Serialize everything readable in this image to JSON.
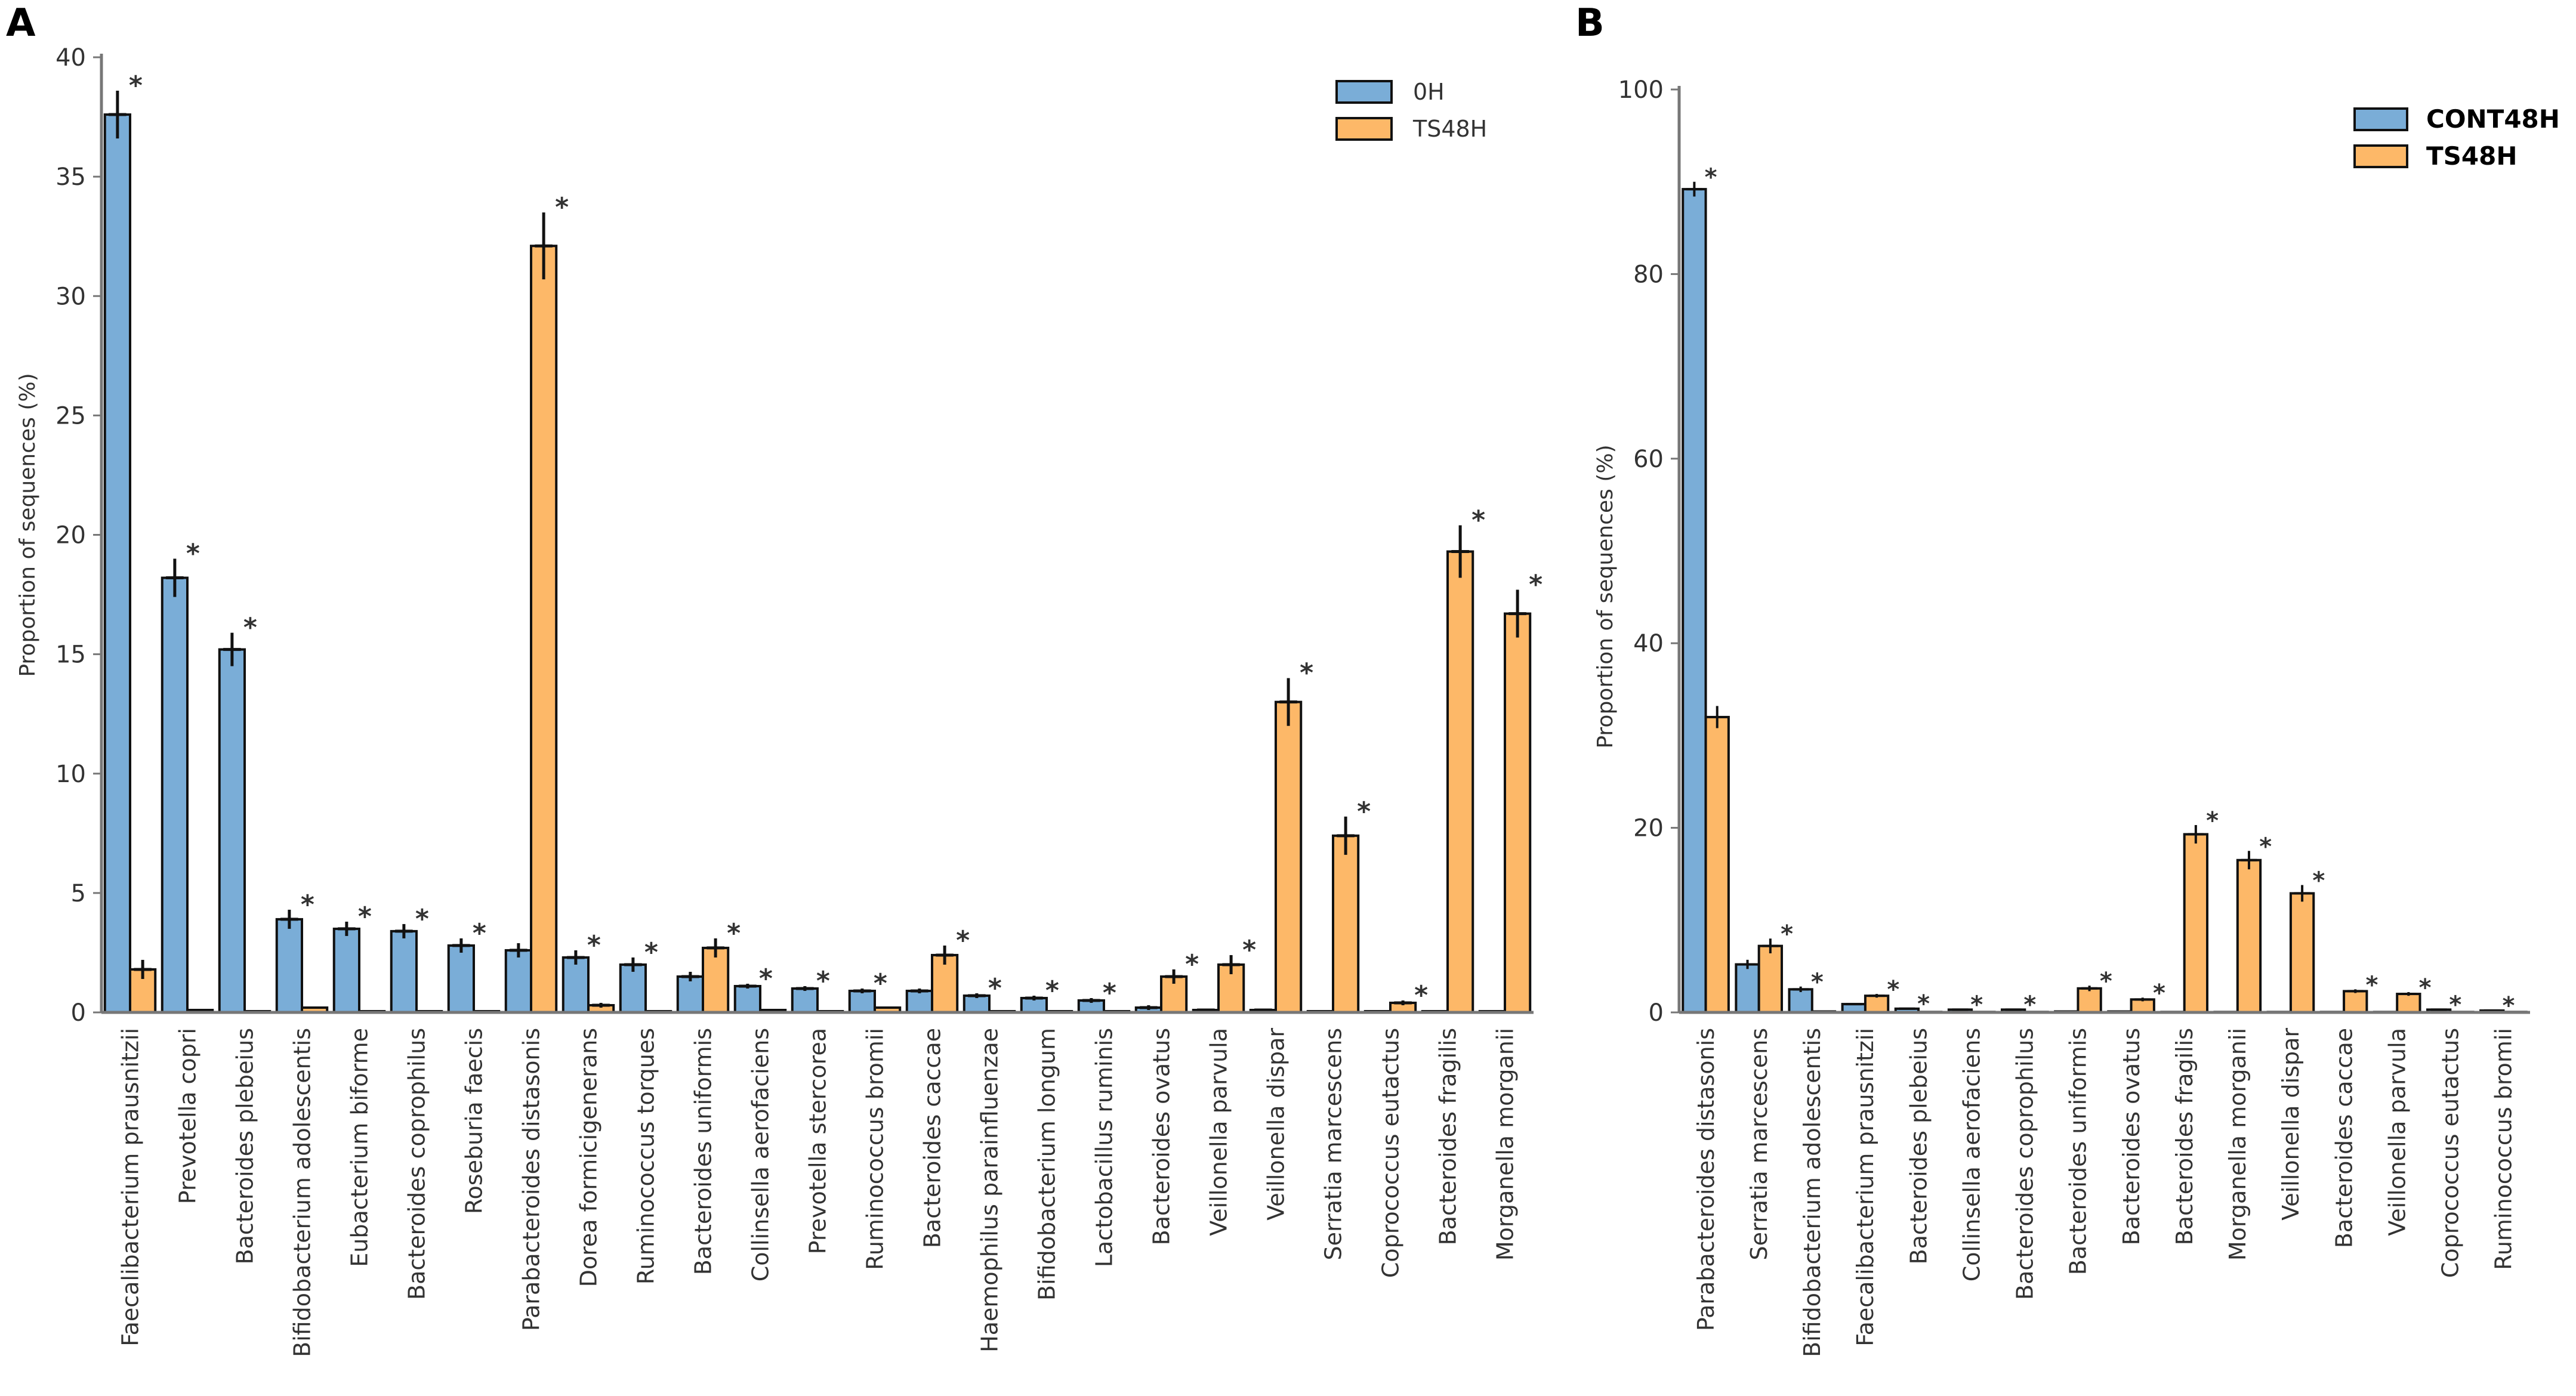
{
  "colors": {
    "blue": "#7aadd7",
    "orange": "#fdb868",
    "edge": "#111111",
    "axis": "#777777"
  },
  "chart_data": [
    {
      "panel_label": "A",
      "type": "bar",
      "ylabel": "Proportion of sequences (%)",
      "xlabel": "",
      "ylim": [
        0,
        40
      ],
      "yticks": [
        0,
        5,
        10,
        15,
        20,
        25,
        30,
        35,
        40
      ],
      "legend_position": "top-right",
      "categories": [
        "Faecalibacterium  prausnitzii",
        "Prevotella copri",
        "Bacteroides plebeius",
        "Bifidobacterium adolescentis",
        "Eubacterium biforme",
        "Bacteroides coprophilus",
        "Roseburia faecis",
        "Parabacteroides distasonis",
        "Dorea formicigenerans",
        "Ruminococcus torques",
        "Bacteroides uniformis",
        "Collinsella aerofaciens",
        "Prevotella stercorea",
        "Ruminococcus bromii",
        "Bacteroides caccae",
        "Haemophilus parainfluenzae",
        "Bifidobacterium longum",
        "Lactobacillus ruminis",
        "Bacteroides ovatus",
        "Veillonella parvula",
        "Veillonella dispar",
        "Serratia  marcescens",
        "Coprococcus eutactus",
        "Bacteroides fragilis",
        "Morganella  morganii"
      ],
      "series": [
        {
          "name": "0H",
          "color": "#7aadd7",
          "values": [
            37.6,
            18.2,
            15.2,
            3.9,
            3.5,
            3.4,
            2.8,
            2.6,
            2.3,
            2.0,
            1.5,
            1.1,
            1.0,
            0.9,
            0.9,
            0.7,
            0.6,
            0.5,
            0.2,
            0.1,
            0.1,
            0.05,
            0.05,
            0.05,
            0.05
          ],
          "errors": [
            1.0,
            0.8,
            0.7,
            0.4,
            0.3,
            0.3,
            0.3,
            0.3,
            0.3,
            0.3,
            0.2,
            0.1,
            0.1,
            0.1,
            0.1,
            0.1,
            0.1,
            0.1,
            0.1,
            0.05,
            0.05,
            0.0,
            0.0,
            0.0,
            0.0
          ]
        },
        {
          "name": "TS48H",
          "color": "#fdb868",
          "values": [
            1.8,
            0.1,
            0.05,
            0.2,
            0.05,
            0.05,
            0.05,
            32.1,
            0.3,
            0.05,
            2.7,
            0.1,
            0.05,
            0.2,
            2.4,
            0.05,
            0.05,
            0.05,
            1.5,
            2.0,
            13.0,
            7.4,
            0.4,
            19.3,
            16.7
          ],
          "errors": [
            0.4,
            0.0,
            0.0,
            0.0,
            0.0,
            0.0,
            0.0,
            1.4,
            0.1,
            0.0,
            0.4,
            0.0,
            0.0,
            0.0,
            0.4,
            0.0,
            0.0,
            0.0,
            0.3,
            0.4,
            1.0,
            0.8,
            0.1,
            1.1,
            1.0
          ]
        }
      ],
      "significance_marker": "*"
    },
    {
      "panel_label": "B",
      "type": "bar",
      "ylabel": "Proportion of sequences (%)",
      "xlabel": "",
      "ylim": [
        0,
        100
      ],
      "yticks": [
        0,
        20,
        40,
        60,
        80,
        100
      ],
      "legend_position": "top-right",
      "categories": [
        "Parabacteroides distasonis",
        "Serratia marcescens",
        "Bifidobacterium adolescentis",
        "Faecalibacterium prausnitzii",
        "Bacteroides plebeius",
        "Collinsella aerofaciens",
        "Bacteroides coprophilus",
        "Bacteroides uniformis",
        "Bacteroides ovatus",
        "Bacteroides fragilis",
        "Morganella morganii",
        "Veillonella dispar",
        "Bacteroides caccae",
        "Veillonella parvula",
        "Coprococcus eutactus",
        "Ruminococcus bromii"
      ],
      "series": [
        {
          "name": "CONT48H",
          "color": "#7aadd7",
          "values": [
            89.2,
            5.2,
            2.5,
            0.9,
            0.4,
            0.3,
            0.3,
            0.1,
            0.1,
            0.05,
            0.05,
            0.05,
            0.05,
            0.05,
            0.3,
            0.2
          ],
          "errors": [
            0.8,
            0.5,
            0.3,
            0.1,
            0.05,
            0.05,
            0.05,
            0.0,
            0.0,
            0.0,
            0.0,
            0.0,
            0.0,
            0.0,
            0.05,
            0.05
          ]
        },
        {
          "name": "TS48H",
          "color": "#fdb868",
          "values": [
            32.0,
            7.2,
            0.1,
            1.8,
            0.05,
            0.05,
            0.05,
            2.6,
            1.4,
            19.3,
            16.5,
            12.9,
            2.3,
            2.0,
            0.05,
            0.05
          ],
          "errors": [
            1.2,
            0.8,
            0.0,
            0.2,
            0.0,
            0.0,
            0.0,
            0.3,
            0.2,
            1.0,
            1.0,
            0.9,
            0.2,
            0.2,
            0.0,
            0.0
          ]
        }
      ],
      "significance_marker": "*"
    }
  ]
}
